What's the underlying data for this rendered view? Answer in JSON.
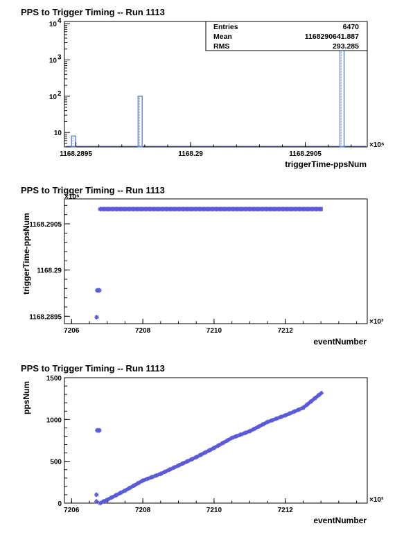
{
  "marker_color": "#5a5adb",
  "hist_color": "#6b8cc8",
  "chart_data": [
    {
      "type": "bar",
      "title": "PPS to Trigger Timing -- Run 1113",
      "xlabel": "triggerTime-ppsNum",
      "ylabel": "",
      "x_multiplier": "×10⁶",
      "log_y": true,
      "xlim": [
        1168.28945,
        1168.29077
      ],
      "ylim": [
        4,
        11500
      ],
      "x_ticks": [
        {
          "value": 1168.2895,
          "label": "1168.2895"
        },
        {
          "value": 1168.29,
          "label": "1168.29"
        },
        {
          "value": 1168.2905,
          "label": "1168.2905"
        }
      ],
      "y_ticks": [
        {
          "value": 10,
          "label": "10",
          "sup": ""
        },
        {
          "value": 100,
          "label": "10",
          "sup": "2"
        },
        {
          "value": 1000,
          "label": "10",
          "sup": "3"
        },
        {
          "value": 10000,
          "label": "10",
          "sup": "4"
        }
      ],
      "bins": [
        {
          "x": 1168.28949,
          "value": 8
        },
        {
          "x": 1168.28978,
          "value": 100
        },
        {
          "x": 1168.29066,
          "value": 6362
        }
      ],
      "bin_width": 1.8e-05,
      "stats": [
        {
          "label": "Entries",
          "value": "6470"
        },
        {
          "label": "Mean",
          "value": "1168290641.887"
        },
        {
          "label": "RMS",
          "value": "293.285"
        }
      ]
    },
    {
      "type": "scatter",
      "title": "PPS to Trigger Timing -- Run 1113",
      "xlabel": "eventNumber",
      "ylabel": "triggerTime-ppsNum",
      "x_multiplier": "×10³",
      "y_multiplier": "×10⁶",
      "xlim": [
        7205.8,
        7214.3
      ],
      "ylim": [
        1168.28942,
        1168.29077
      ],
      "x_ticks": [
        {
          "value": 7206,
          "label": "7206"
        },
        {
          "value": 7208,
          "label": "7208"
        },
        {
          "value": 7210,
          "label": "7210"
        },
        {
          "value": 7212,
          "label": "7212"
        }
      ],
      "y_ticks": [
        {
          "value": 1168.2895,
          "label": "1168.2895"
        },
        {
          "value": 1168.29,
          "label": "1168.29"
        },
        {
          "value": 1168.2905,
          "label": "1168.2905"
        }
      ],
      "points": [
        [
          6.705,
          1168.28949
        ],
        [
          6.72,
          1168.28978
        ],
        [
          6.74,
          1168.28978
        ],
        [
          6.76,
          1168.28978
        ],
        [
          6.78,
          1168.28978
        ]
      ],
      "band": {
        "x_start": 7206.8,
        "x_end": 7213.05,
        "y": 1168.29066
      }
    },
    {
      "type": "scatter",
      "title": "PPS to Trigger Timing -- Run 1113",
      "xlabel": "eventNumber",
      "ylabel": "ppsNum",
      "x_multiplier": "×10³",
      "xlim": [
        7205.8,
        7214.3
      ],
      "ylim": [
        0,
        1500
      ],
      "x_ticks": [
        {
          "value": 7206,
          "label": "7206"
        },
        {
          "value": 7208,
          "label": "7208"
        },
        {
          "value": 7210,
          "label": "7210"
        },
        {
          "value": 7212,
          "label": "7212"
        }
      ],
      "y_ticks": [
        {
          "value": 0,
          "label": "0"
        },
        {
          "value": 500,
          "label": "500"
        },
        {
          "value": 1000,
          "label": "1000"
        },
        {
          "value": 1500,
          "label": "1500"
        }
      ],
      "points": [
        [
          7206.7,
          20
        ],
        [
          7206.7,
          100
        ],
        [
          7206.72,
          870
        ],
        [
          7206.74,
          870
        ],
        [
          7206.76,
          870
        ],
        [
          7206.78,
          870
        ]
      ],
      "curve": [
        [
          7206.8,
          0
        ],
        [
          7207.0,
          40
        ],
        [
          7207.5,
          150
        ],
        [
          7208.0,
          270
        ],
        [
          7208.5,
          350
        ],
        [
          7209.0,
          450
        ],
        [
          7209.5,
          550
        ],
        [
          7210.0,
          660
        ],
        [
          7210.5,
          780
        ],
        [
          7211.0,
          860
        ],
        [
          7211.5,
          970
        ],
        [
          7212.0,
          1050
        ],
        [
          7212.5,
          1140
        ],
        [
          7213.05,
          1330
        ]
      ]
    }
  ]
}
